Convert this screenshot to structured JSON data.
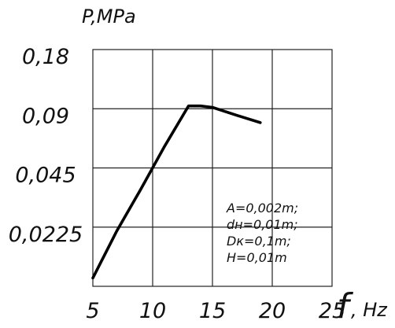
{
  "chart_data": {
    "type": "line",
    "title": "",
    "ylabel": "P,MPa",
    "xlabel_symbol": "f",
    "xlabel_unit": ", Hz",
    "yscale": "log2",
    "y_ticks": [
      "0,18",
      "0,09",
      "0,045",
      "0,0225"
    ],
    "y_tick_values": [
      0.18,
      0.09,
      0.045,
      0.0225
    ],
    "x_ticks": [
      "5",
      "10",
      "15",
      "20",
      "25"
    ],
    "x_tick_values": [
      5,
      10,
      15,
      20,
      25
    ],
    "xlim": [
      5,
      25
    ],
    "ylim": [
      0.01125,
      0.18
    ],
    "grid": true,
    "series": [
      {
        "x": [
          5,
          7,
          9,
          11,
          13,
          14,
          15,
          17,
          19
        ],
        "y": [
          0.0124,
          0.0215,
          0.035,
          0.058,
          0.093,
          0.093,
          0.0915,
          0.0835,
          0.0765
        ]
      }
    ],
    "annotation": [
      "A=0,002m;",
      "dн=0,01m;",
      "Dк=0,1m;",
      "H=0,01m"
    ],
    "colors": {
      "line": "#000000",
      "grid": "#222222"
    }
  }
}
